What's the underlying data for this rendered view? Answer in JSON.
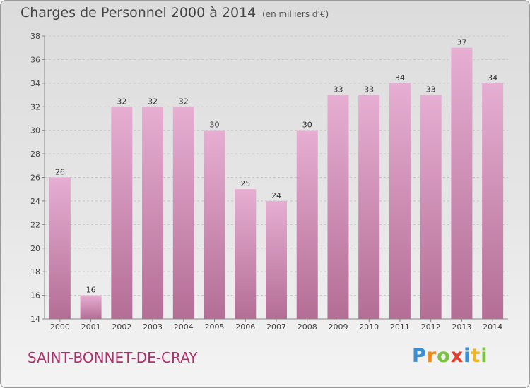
{
  "title": "Charges de Personnel 2000 à 2014",
  "subtitle": "(en milliers d'€)",
  "commune": "SAINT-BONNET-DE-CRAY",
  "logo": {
    "text": "Proxiti",
    "letters": [
      {
        "ch": "P",
        "color": "#3a8fd6"
      },
      {
        "ch": "r",
        "color": "#f28a1c"
      },
      {
        "ch": "o",
        "color": "#7cc242"
      },
      {
        "ch": "x",
        "color": "#e63c2e"
      },
      {
        "ch": "i",
        "color": "#3a8fd6"
      },
      {
        "ch": "t",
        "color": "#f2b61c"
      },
      {
        "ch": "i",
        "color": "#7cc242"
      }
    ]
  },
  "colors": {
    "bar_top": "#e6aed2",
    "bar_bottom": "#b46e96",
    "grid": "#c8c8c8",
    "axis": "#888888"
  },
  "chart_data": {
    "type": "bar",
    "categories": [
      "2000",
      "2001",
      "2002",
      "2003",
      "2004",
      "2005",
      "2006",
      "2007",
      "2008",
      "2009",
      "2010",
      "2011",
      "2012",
      "2013",
      "2014"
    ],
    "values": [
      26,
      16,
      32,
      32,
      32,
      30,
      25,
      24,
      30,
      33,
      33,
      34,
      33,
      37,
      34
    ],
    "ylim": [
      14,
      38
    ],
    "yticks": [
      14,
      16,
      18,
      20,
      22,
      24,
      26,
      28,
      30,
      32,
      34,
      36,
      38
    ],
    "grid": true
  }
}
